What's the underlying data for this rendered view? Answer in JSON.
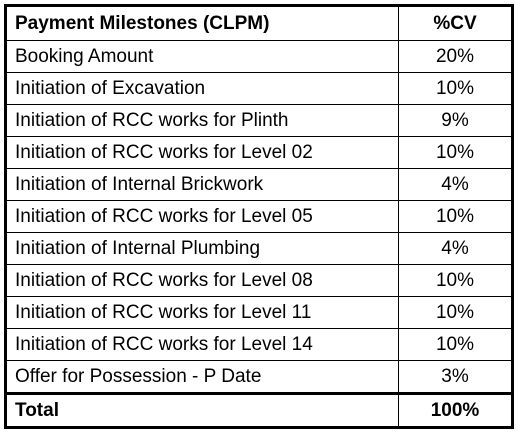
{
  "table": {
    "header": [
      "Payment Milestones (CLPM)",
      "%CV"
    ],
    "rows": [
      [
        "Booking Amount",
        "20%"
      ],
      [
        "Initiation of Excavation",
        "10%"
      ],
      [
        "Initiation of RCC works for Plinth",
        "9%"
      ],
      [
        "Initiation of RCC works for Level 02",
        "10%"
      ],
      [
        "Initiation of Internal Brickwork",
        "4%"
      ],
      [
        "Initiation of RCC works for Level 05",
        "10%"
      ],
      [
        "Initiation of Internal Plumbing",
        "4%"
      ],
      [
        "Initiation of RCC works for Level 08",
        "10%"
      ],
      [
        "Initiation of RCC works for Level 11",
        "10%"
      ],
      [
        "Initiation of RCC works for Level 14",
        "10%"
      ],
      [
        "Offer for Possession - P Date",
        "3%"
      ]
    ],
    "total": [
      "Total",
      "100%"
    ]
  }
}
